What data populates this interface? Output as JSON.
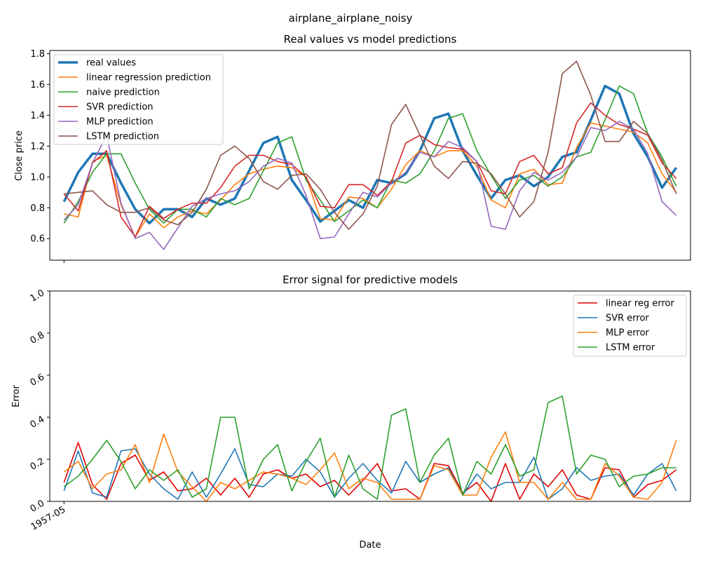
{
  "figure": {
    "suptitle": "airplane_airplane_noisy"
  },
  "chart_data": [
    {
      "type": "line",
      "title": "Real values vs model predictions",
      "xlabel": "",
      "ylabel": "Close price",
      "ylim": [
        0.46,
        1.82
      ],
      "yticks": [
        "0.6",
        "0.8",
        "1.0",
        "1.2",
        "1.4",
        "1.6",
        "1.8"
      ],
      "ytick_values": [
        0.6,
        0.8,
        1.0,
        1.2,
        1.4,
        1.6,
        1.8
      ],
      "xlim": [
        -1,
        44
      ],
      "legend_position": "upper-left",
      "series": [
        {
          "name": "real values",
          "color": "#1f77b4",
          "width": 3.5,
          "values": [
            0.84,
            1.03,
            1.15,
            1.15,
            0.96,
            0.79,
            0.7,
            0.79,
            0.79,
            0.74,
            0.86,
            0.82,
            0.86,
            1.04,
            1.22,
            1.26,
            0.98,
            0.85,
            0.71,
            0.78,
            0.85,
            0.8,
            0.98,
            0.96,
            1.02,
            1.17,
            1.38,
            1.41,
            1.17,
            1.01,
            0.86,
            0.98,
            1.01,
            0.94,
            1.0,
            1.13,
            1.16,
            1.37,
            1.59,
            1.54,
            1.28,
            1.13,
            0.93,
            1.06
          ]
        },
        {
          "name": "linear regression prediction",
          "color": "#ff7f0e",
          "width": 1.6,
          "values": [
            0.76,
            0.74,
            1.1,
            1.14,
            0.82,
            0.61,
            0.76,
            0.67,
            0.74,
            0.78,
            0.76,
            0.85,
            0.95,
            1.02,
            1.05,
            1.07,
            1.06,
            1.0,
            0.73,
            0.72,
            0.87,
            0.86,
            0.8,
            0.92,
            1.08,
            1.17,
            1.13,
            1.17,
            1.17,
            1.07,
            0.85,
            0.8,
            1.02,
            1.05,
            0.95,
            0.96,
            1.19,
            1.35,
            1.33,
            1.31,
            1.29,
            1.22,
            1.02,
            0.9
          ]
        },
        {
          "name": "naive prediction",
          "color": "#2ca02c",
          "width": 1.6,
          "values": [
            0.7,
            0.84,
            1.03,
            1.15,
            1.15,
            0.96,
            0.79,
            0.7,
            0.79,
            0.79,
            0.74,
            0.86,
            0.82,
            0.86,
            1.04,
            1.22,
            1.26,
            0.98,
            0.85,
            0.71,
            0.78,
            0.85,
            0.8,
            0.98,
            0.96,
            1.02,
            1.17,
            1.38,
            1.41,
            1.17,
            1.01,
            0.86,
            0.98,
            1.01,
            0.94,
            1.0,
            1.13,
            1.16,
            1.37,
            1.59,
            1.54,
            1.28,
            1.13,
            0.94
          ]
        },
        {
          "name": "SVR prediction",
          "color": "#d62728",
          "width": 1.6,
          "values": [
            0.89,
            0.78,
            1.09,
            1.17,
            0.74,
            0.61,
            0.81,
            0.73,
            0.79,
            0.83,
            0.83,
            0.93,
            1.07,
            1.14,
            1.14,
            1.1,
            1.08,
            1.0,
            0.81,
            0.8,
            0.95,
            0.95,
            0.88,
            0.97,
            1.22,
            1.27,
            1.21,
            1.19,
            1.18,
            1.1,
            0.91,
            0.89,
            1.1,
            1.14,
            1.02,
            1.06,
            1.35,
            1.48,
            1.4,
            1.34,
            1.31,
            1.27,
            1.09,
            0.99
          ]
        },
        {
          "name": "MLP prediction",
          "color": "#9467bd",
          "width": 1.6,
          "values": [
            0.72,
            0.82,
            1.09,
            1.27,
            0.83,
            0.6,
            0.64,
            0.53,
            0.67,
            0.81,
            0.86,
            0.89,
            0.91,
            0.97,
            1.07,
            1.12,
            1.09,
            0.88,
            0.6,
            0.61,
            0.76,
            0.9,
            0.87,
            0.96,
            1.03,
            1.16,
            1.13,
            1.23,
            1.19,
            1.1,
            0.68,
            0.66,
            0.91,
            1.03,
            0.98,
            1.03,
            1.13,
            1.32,
            1.3,
            1.36,
            1.31,
            1.15,
            0.84,
            0.75
          ]
        },
        {
          "name": "LSTM prediction",
          "color": "#8c564b",
          "width": 1.6,
          "values": [
            0.89,
            0.9,
            0.91,
            0.82,
            0.77,
            0.77,
            0.8,
            0.72,
            0.69,
            0.77,
            0.92,
            1.14,
            1.2,
            1.12,
            0.97,
            0.92,
            1.01,
            1.02,
            0.92,
            0.77,
            0.66,
            0.76,
            0.94,
            1.34,
            1.47,
            1.27,
            1.07,
            0.99,
            1.1,
            1.09,
            1.02,
            0.89,
            0.74,
            0.84,
            1.16,
            1.67,
            1.75,
            1.53,
            1.23,
            1.23,
            1.36,
            1.28,
            1.11,
            0.89
          ]
        }
      ]
    },
    {
      "type": "line",
      "title": "Error signal for predictive models",
      "xlabel": "Date",
      "ylabel": "Error",
      "ylim": [
        0.0,
        1.0
      ],
      "yticks": [
        "0.0",
        "0.2",
        "0.4",
        "0.6",
        "0.8",
        "1.0"
      ],
      "ytick_values": [
        0.0,
        0.2,
        0.4,
        0.6,
        0.8,
        1.0
      ],
      "xlim": [
        -1,
        44
      ],
      "xticks": [
        "1957-05"
      ],
      "xtick_index": [
        0
      ],
      "legend_position": "upper-right",
      "series": [
        {
          "name": "linear reg error",
          "color": "#e00000",
          "width": 1.6,
          "values": [
            0.09,
            0.28,
            0.08,
            0.01,
            0.18,
            0.22,
            0.1,
            0.14,
            0.05,
            0.06,
            0.11,
            0.03,
            0.11,
            0.02,
            0.13,
            0.15,
            0.11,
            0.13,
            0.07,
            0.1,
            0.03,
            0.1,
            0.18,
            0.05,
            0.06,
            0.01,
            0.18,
            0.17,
            0.04,
            0.09,
            0.0,
            0.18,
            0.01,
            0.13,
            0.07,
            0.15,
            0.03,
            0.01,
            0.16,
            0.15,
            0.02,
            0.08,
            0.1,
            0.15
          ]
        },
        {
          "name": "SVR error",
          "color": "#1f77b4",
          "width": 1.6,
          "values": [
            0.05,
            0.24,
            0.04,
            0.02,
            0.24,
            0.25,
            0.13,
            0.06,
            0.01,
            0.14,
            0.02,
            0.13,
            0.25,
            0.08,
            0.07,
            0.13,
            0.12,
            0.2,
            0.14,
            0.02,
            0.11,
            0.18,
            0.1,
            0.04,
            0.19,
            0.09,
            0.13,
            0.16,
            0.03,
            0.13,
            0.06,
            0.09,
            0.09,
            0.21,
            0.01,
            0.06,
            0.16,
            0.1,
            0.12,
            0.13,
            0.03,
            0.13,
            0.18,
            0.05
          ]
        },
        {
          "name": "MLP error",
          "color": "#ff7f0e",
          "width": 1.6,
          "values": [
            0.14,
            0.19,
            0.06,
            0.13,
            0.15,
            0.27,
            0.09,
            0.32,
            0.14,
            0.07,
            0.0,
            0.09,
            0.06,
            0.1,
            0.14,
            0.13,
            0.11,
            0.08,
            0.15,
            0.23,
            0.06,
            0.11,
            0.09,
            0.01,
            0.01,
            0.01,
            0.17,
            0.15,
            0.03,
            0.03,
            0.21,
            0.33,
            0.09,
            0.09,
            0.01,
            0.09,
            0.01,
            0.01,
            0.18,
            0.12,
            0.02,
            0.01,
            0.09,
            0.29
          ]
        },
        {
          "name": "LSTM error",
          "color": "#2ca02c",
          "width": 1.6,
          "values": [
            0.07,
            0.12,
            0.2,
            0.29,
            0.19,
            0.06,
            0.15,
            0.1,
            0.15,
            0.02,
            0.06,
            0.4,
            0.4,
            0.06,
            0.2,
            0.27,
            0.05,
            0.19,
            0.3,
            0.02,
            0.22,
            0.06,
            0.01,
            0.41,
            0.44,
            0.09,
            0.22,
            0.3,
            0.03,
            0.19,
            0.13,
            0.27,
            0.12,
            0.15,
            0.47,
            0.5,
            0.13,
            0.22,
            0.2,
            0.07,
            0.12,
            0.13,
            0.16,
            0.16
          ]
        }
      ]
    }
  ]
}
